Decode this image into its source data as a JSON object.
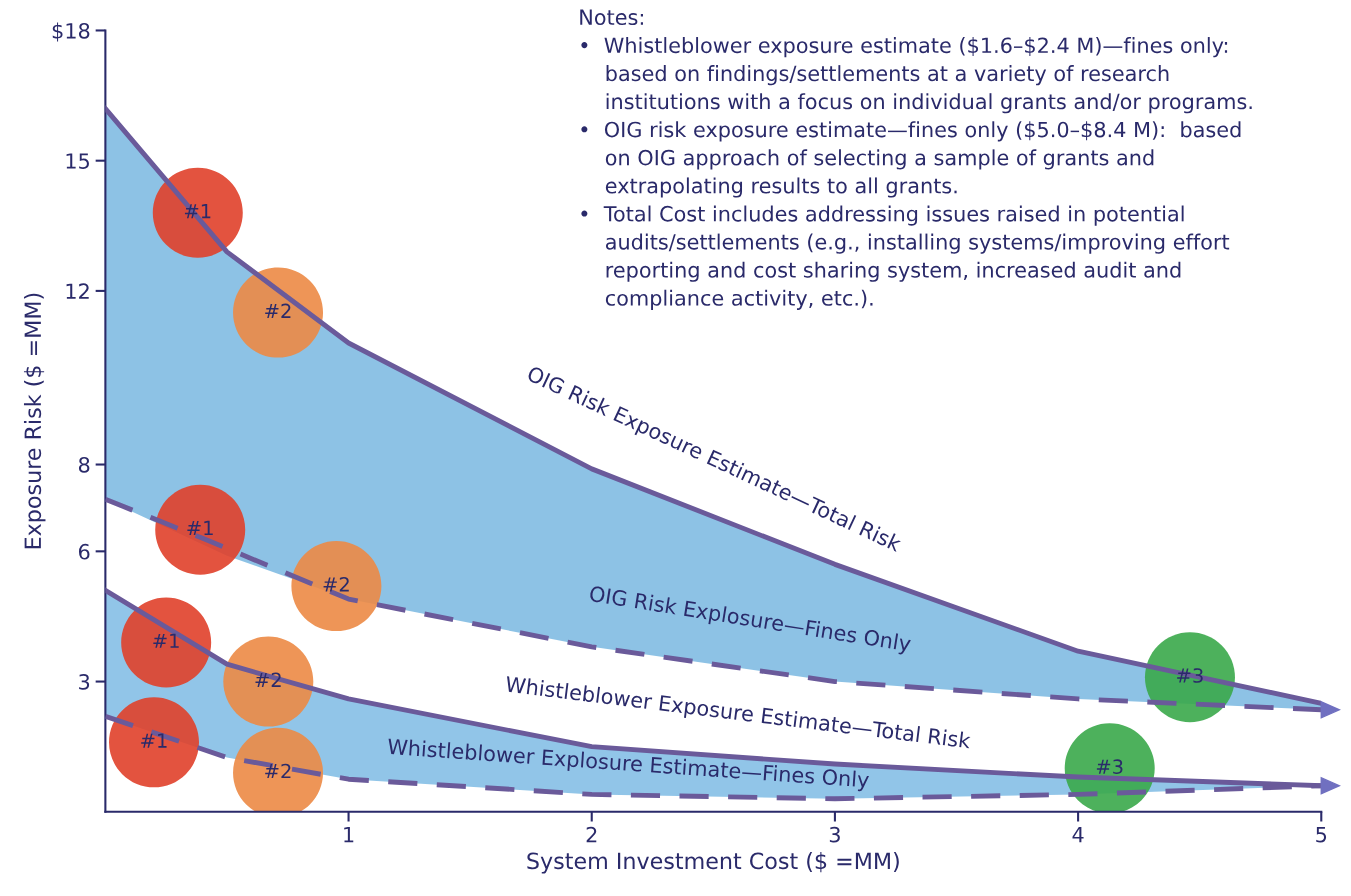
{
  "chart_data": {
    "type": "line",
    "xlabel": "System Investment Cost ($ =MM)",
    "ylabel": "Exposure Risk ($ =MM)",
    "xlim": [
      0,
      5
    ],
    "ylim": [
      0,
      18
    ],
    "xticks": [
      1,
      2,
      3,
      4,
      5
    ],
    "yticks": [
      3,
      6,
      8,
      12,
      15,
      {
        "value": 18,
        "label": "$18"
      }
    ],
    "grid": false,
    "series": [
      {
        "line_style": "solid",
        "color": "#6a5a9a",
        "x": [
          0,
          0.5,
          1,
          2,
          3,
          4,
          5
        ],
        "values": [
          16.2,
          12.9,
          10.8,
          7.9,
          5.7,
          3.7,
          2.5
        ],
        "lower": [
          7.2,
          5.9,
          4.9,
          3.8,
          3.0,
          2.6,
          2.35
        ],
        "upper": [
          16.2,
          12.9,
          10.8,
          7.9,
          5.7,
          3.7,
          2.5
        ]
      },
      {
        "line_style": "dashed",
        "color": "#6a5a9a",
        "x": [
          0,
          0.4,
          1,
          2,
          3,
          4,
          5
        ],
        "values": [
          7.2,
          6.3,
          4.9,
          3.8,
          3.0,
          2.6,
          2.35
        ]
      },
      {
        "line_style": "solid",
        "color": "#6a5a9a",
        "x": [
          0,
          0.5,
          1,
          2,
          3,
          4,
          5
        ],
        "values": [
          5.1,
          3.4,
          2.6,
          1.5,
          1.1,
          0.8,
          0.6
        ],
        "lower": [
          2.2,
          1.25,
          0.75,
          0.4,
          0.3,
          0.4,
          0.6
        ],
        "upper": [
          5.1,
          3.4,
          2.6,
          1.5,
          1.1,
          0.8,
          0.6
        ]
      },
      {
        "line_style": "dashed",
        "color": "#6a5a9a",
        "x": [
          0,
          0.5,
          1,
          2,
          3,
          4,
          5
        ],
        "values": [
          2.2,
          1.25,
          0.75,
          0.4,
          0.3,
          0.4,
          0.6
        ]
      },
      {
        "type": "scatter",
        "x": [
          0.38,
          0.71,
          0.39,
          0.95,
          0.25,
          0.67,
          0.2,
          0.71,
          4.46,
          4.13
        ],
        "values": [
          13.8,
          11.5,
          6.5,
          5.2,
          3.9,
          3.0,
          1.6,
          0.9,
          3.1,
          1.0
        ],
        "colors": [
          "#e0402a",
          "#ec8a45",
          "#e0402a",
          "#ec8a45",
          "#e0402a",
          "#ec8a45",
          "#e0402a",
          "#ec8a45",
          "#3aa84a",
          "#3aa84a"
        ]
      }
    ],
    "annotations": [
      {
        "text": "#1",
        "x": 0.38,
        "y": 13.8
      },
      {
        "text": "#2",
        "x": 0.71,
        "y": 11.5
      },
      {
        "text": "#1",
        "x": 0.39,
        "y": 6.5
      },
      {
        "text": "#2",
        "x": 0.95,
        "y": 5.2
      },
      {
        "text": "#1",
        "x": 0.25,
        "y": 3.9
      },
      {
        "text": "#2",
        "x": 0.67,
        "y": 3.0
      },
      {
        "text": "#1",
        "x": 0.2,
        "y": 1.6
      },
      {
        "text": "#2",
        "x": 0.71,
        "y": 0.9
      },
      {
        "text": "#3",
        "x": 4.46,
        "y": 3.1
      },
      {
        "text": "#3",
        "x": 4.13,
        "y": 1.0
      },
      "OIG Risk Exposure Estimate—Total Risk",
      "OIG Risk Explosure—Fines Only",
      "Whistleblower Exposure Estimate—Total Risk",
      "Whistleblower Explosure Estimate—Fines Only",
      "Notes:\n•  Whistleblower exposure estimate ($1.6–$2.4 M)—fines only:\n    based on findings/settlements at a variety of research\n    institutions with a focus on individual grants and/or programs.\n•  OIG risk exposure estimate—fines only ($5.0–$8.4 M):  based\n    on OIG approach of selecting a sample of grants and\n    extrapolating results to all grants.\n•  Total Cost includes addressing issues raised in potential\n    audits/settlements (e.g., installing systems/improving effort\n    reporting and cost sharing system, increased audit and\n    compliance activity, etc.)."
    ]
  }
}
